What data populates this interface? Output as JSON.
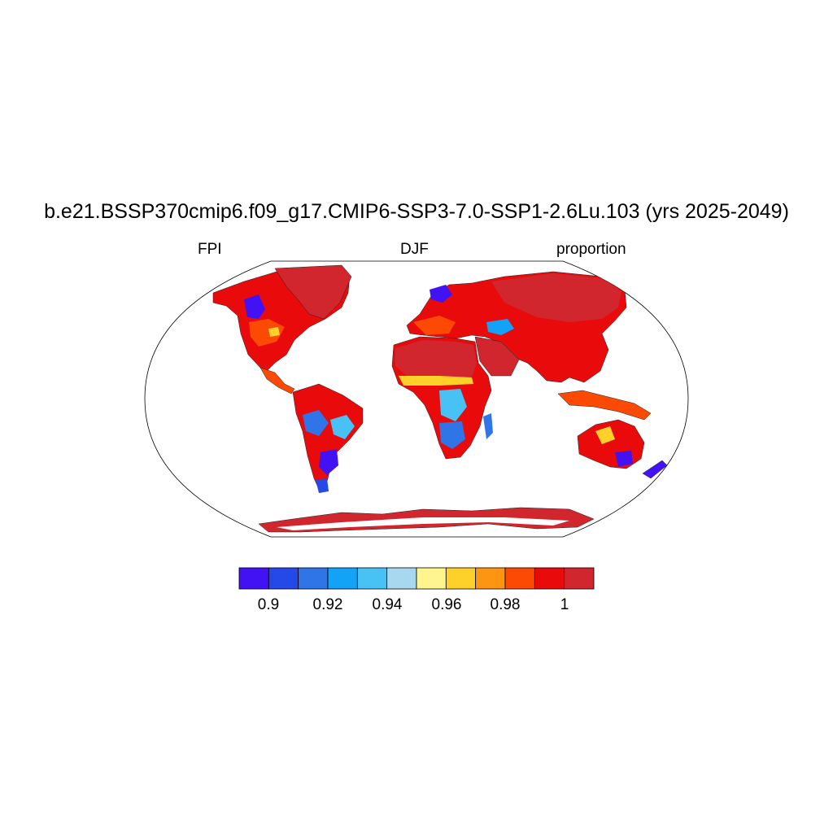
{
  "title": "b.e21.BSSP370cmip6.f09_g17.CMIP6-SSP3-7.0-SSP1-2.6Lu.103 (yrs 2025-2049)",
  "left_string": "FPI",
  "center_string": "DJF",
  "right_string": "proportion",
  "colorbar": {
    "colors": [
      "#4212f5",
      "#2548e8",
      "#3075e8",
      "#12a3f7",
      "#48c2f5",
      "#a8d8ef",
      "#fef58e",
      "#fdd02a",
      "#fd9412",
      "#fc4a05",
      "#e90a0c",
      "#d2262e"
    ],
    "tick_labels": [
      "0.9",
      "0.92",
      "0.94",
      "0.96",
      "0.98",
      "1"
    ]
  },
  "legend_colors": {
    "low": "#4212f5",
    "mid_blue": "#12a3f7",
    "high": "#d2262e",
    "land_main": "#e90a0c",
    "orange": "#fc4a05"
  }
}
